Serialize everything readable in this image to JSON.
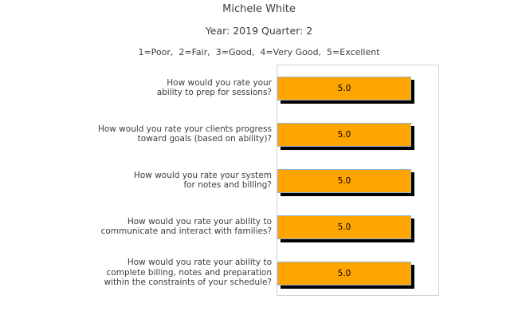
{
  "chart_data": {
    "type": "bar",
    "orientation": "horizontal",
    "title": "Michele White",
    "subtitle": "Year: 2019 Quarter: 2",
    "scale_note": "1=Poor,  2=Fair,  3=Good,  4=Very Good,  5=Excellent",
    "categories": [
      "How would you rate your\nability to prep for sessions?",
      "How would you rate your clients progress\ntoward goals (based on ability)?",
      "How would you rate your system\nfor notes and billing?",
      "How would you rate your ability to\ncommunicate and interact with families?",
      "How would you rate your ability to\ncomplete billing, notes and preparation\nwithin the constraints of your schedule?"
    ],
    "values": [
      5.0,
      5.0,
      5.0,
      5.0,
      5.0
    ],
    "value_labels": [
      "5.0",
      "5.0",
      "5.0",
      "5.0",
      "5.0"
    ],
    "xlim": [
      0,
      6
    ],
    "grid": false,
    "legend": false,
    "colors": {
      "bar_fill": "#ffa500",
      "bar_edge": "#8fb6d9",
      "bar_shadow": "#000000",
      "value_text": "#000000",
      "text": "#3d3d3d",
      "plot_border": "#d4d4d4",
      "background": "#ffffff"
    }
  }
}
